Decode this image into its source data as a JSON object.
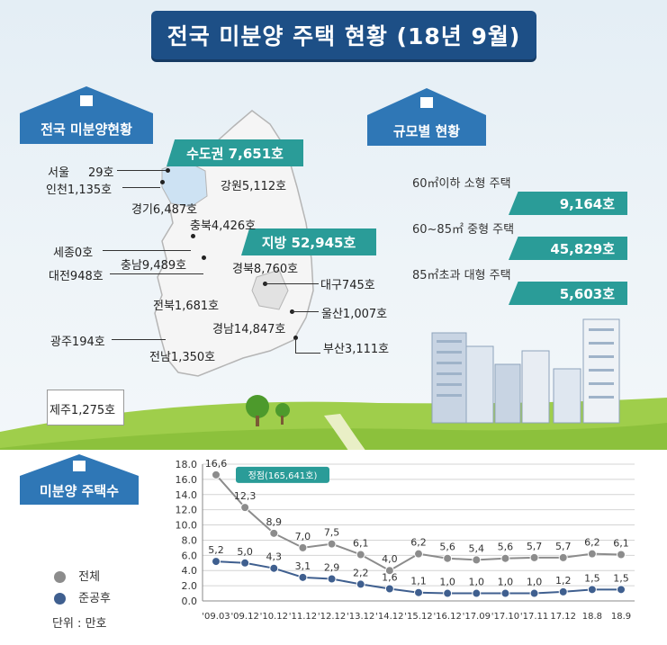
{
  "title": "전국 미분양 주택 현황 (18년 9월)",
  "section_national": "전국 미분양현황",
  "section_size": "규모별 현황",
  "section_count": "미분양 주택수",
  "capital_banner": "수도권 7,651호",
  "local_banner": "지방 52,945호",
  "regions": {
    "seoul": "서울",
    "seoul_value": "29호",
    "incheon": "인천1,135호",
    "gyeonggi": "경기6,487호",
    "gangwon": "강원5,112호",
    "chungbuk": "충북4,426호",
    "sejong": "세종0호",
    "chungnam": "충남9,489호",
    "daejeon": "대전948호",
    "gyeongbuk": "경북8,760호",
    "daegu": "대구745호",
    "jeonbuk": "전북1,681호",
    "ulsan": "울산1,007호",
    "gyeongnam": "경남14,847호",
    "gwangju": "광주194호",
    "jeonnam": "전남1,350호",
    "busan": "부산3,111호",
    "jeju": "제주1,275호"
  },
  "sizes": [
    {
      "label": "60㎡이하 소형 주택",
      "value": "9,164호"
    },
    {
      "label": "60~85㎡ 중형 주택",
      "value": "45,829호"
    },
    {
      "label": "85㎡초과 대형 주택",
      "value": "5,603호"
    }
  ],
  "legend": {
    "total": "전체",
    "completed": "준공후",
    "unit": "단위 : 만호"
  },
  "peak_callout": "정점(165,641호)",
  "colors": {
    "navy": "#1d4f86",
    "blue": "#2f77b6",
    "teal": "#2a9c98",
    "gray_series": "#8c8c8c",
    "blue_series": "#3f5f8f"
  },
  "chart_data": {
    "type": "line",
    "categories": [
      "'09.03",
      "'09.12",
      "'10.12",
      "'11.12",
      "'12.12",
      "'13.12",
      "'14.12",
      "'15.12",
      "'16.12",
      "'17.09",
      "'17.10",
      "'17.11",
      "17.12",
      "18.8",
      "18.9"
    ],
    "series": [
      {
        "name": "전체",
        "values": [
          16.6,
          12.3,
          8.9,
          7.0,
          7.5,
          6.1,
          4.0,
          6.2,
          5.6,
          5.4,
          5.6,
          5.7,
          5.7,
          6.2,
          6.1
        ]
      },
      {
        "name": "준공후",
        "values": [
          5.2,
          5.0,
          4.3,
          3.1,
          2.9,
          2.2,
          1.6,
          1.1,
          1.0,
          1.0,
          1.0,
          1.0,
          1.2,
          1.5,
          1.5
        ]
      }
    ],
    "y_ticks": [
      "0.0",
      "2.0",
      "4.0",
      "6.0",
      "8.0",
      "10.0",
      "12.0",
      "14.0",
      "16.0",
      "18.0"
    ],
    "ylim": [
      0,
      18
    ],
    "grid": true
  }
}
